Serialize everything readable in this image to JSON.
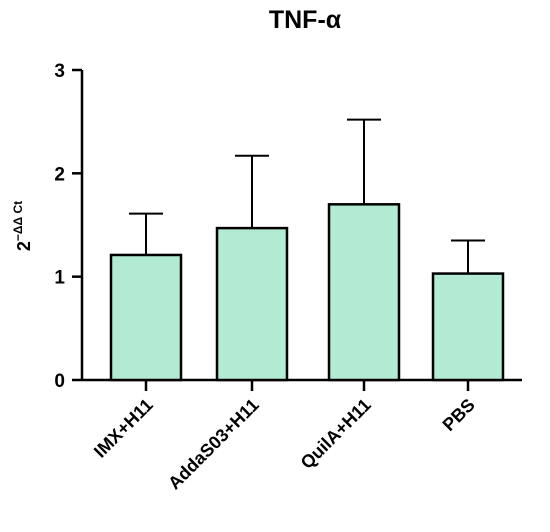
{
  "chart_data": {
    "type": "bar",
    "title": "TNF-α",
    "xlabel": "",
    "ylabel": {
      "base": "2",
      "superscript": "−ΔΔ Ct"
    },
    "ylim": [
      0,
      3
    ],
    "yticks": [
      0,
      1,
      2,
      3
    ],
    "categories": [
      "IMX+H11",
      "AddaS03+H11",
      "QuilA+H11",
      "PBS"
    ],
    "values": [
      1.21,
      1.47,
      1.7,
      1.03
    ],
    "error_upper": [
      0.4,
      0.7,
      0.82,
      0.32
    ],
    "bar_color": "#b3ead4",
    "edge_color": "#000000",
    "grid": false,
    "legend": "none"
  }
}
